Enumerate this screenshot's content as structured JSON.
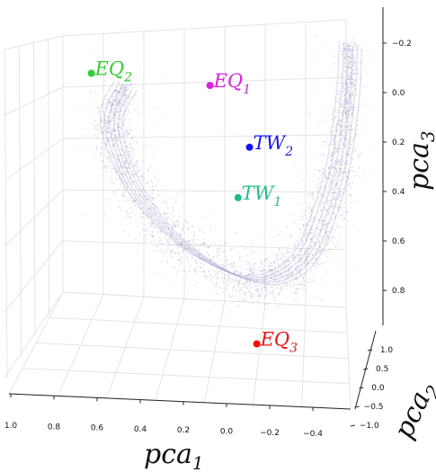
{
  "chart_data": {
    "type": "scatter",
    "projection": "3d",
    "grid": true,
    "axes": {
      "x": {
        "label_main": "pca",
        "label_sub": "1",
        "range": [
          1.0,
          -0.4
        ],
        "ticks": [
          "1.0",
          "0.8",
          "0.6",
          "0.4",
          "0.2",
          "0.0",
          "−0.2",
          "−0.4"
        ]
      },
      "y": {
        "label_main": "pca",
        "label_sub": "2",
        "range": [
          -1.0,
          1.0
        ],
        "ticks": [
          "1.0",
          "0.5",
          "0.0",
          "−0.5",
          "−1.0"
        ]
      },
      "z": {
        "label_main": "pca",
        "label_sub": "3",
        "range": [
          -0.2,
          0.8
        ],
        "ticks": [
          "−0.2",
          "0.0",
          "0.2",
          "0.4",
          "0.6",
          "0.8"
        ]
      }
    },
    "points": [
      {
        "main": "EQ",
        "sub": "2",
        "color": "#33cc33",
        "x": 0.62,
        "y": -0.2,
        "z": -0.1
      },
      {
        "main": "EQ",
        "sub": "1",
        "color": "#dd22dd",
        "x": 0.08,
        "y": 0.1,
        "z": -0.05
      },
      {
        "main": "TW",
        "sub": "2",
        "color": "#1515ee",
        "x": -0.1,
        "y": 0.2,
        "z": 0.2
      },
      {
        "main": "TW",
        "sub": "1",
        "color": "#22bb88",
        "x": -0.05,
        "y": 0.1,
        "z": 0.4
      },
      {
        "main": "EQ",
        "sub": "3",
        "color": "#ee1111",
        "x": -0.13,
        "y": 0.3,
        "z": 1.0
      }
    ],
    "cloud_color": "#a8a8cc"
  }
}
